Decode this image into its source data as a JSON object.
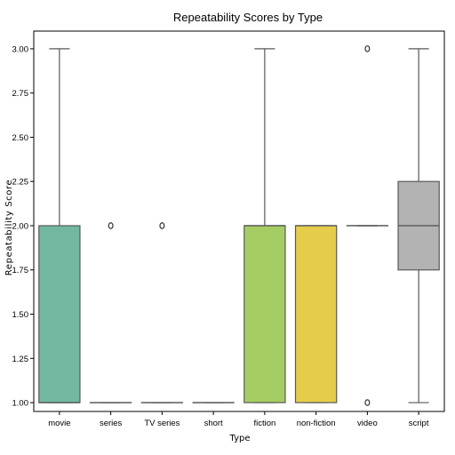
{
  "chart_data": {
    "type": "box",
    "title": "Repeatability Scores by Type",
    "xlabel": "Type",
    "ylabel": "Repeatability Score",
    "ylim": [
      0.95,
      3.1
    ],
    "yticks": [
      "1.00",
      "1.25",
      "1.50",
      "1.75",
      "2.00",
      "2.25",
      "2.50",
      "2.75",
      "3.00"
    ],
    "grid": false,
    "categories": [
      "movie",
      "series",
      "TV series",
      "short",
      "fiction",
      "non-fiction",
      "video",
      "script"
    ],
    "boxes": [
      {
        "category": "movie",
        "whisker_low": 1.0,
        "q1": 1.0,
        "median": 1.0,
        "q3": 2.0,
        "whisker_high": 3.0,
        "outliers": [],
        "color": "#72b8a1"
      },
      {
        "category": "series",
        "whisker_low": 1.0,
        "q1": 1.0,
        "median": 1.0,
        "q3": 1.0,
        "whisker_high": 1.0,
        "outliers": [
          2.0
        ],
        "color": "#ee9469"
      },
      {
        "category": "TV series",
        "whisker_low": 1.0,
        "q1": 1.0,
        "median": 1.0,
        "q3": 1.0,
        "whisker_high": 1.0,
        "outliers": [
          2.0
        ],
        "color": "#98a6cd"
      },
      {
        "category": "short",
        "whisker_low": 1.0,
        "q1": 1.0,
        "median": 1.0,
        "q3": 1.0,
        "whisker_high": 1.0,
        "outliers": [],
        "color": "#de8fc2"
      },
      {
        "category": "fiction",
        "whisker_low": 1.0,
        "q1": 1.0,
        "median": 2.0,
        "q3": 2.0,
        "whisker_high": 3.0,
        "outliers": [],
        "color": "#a5cd63"
      },
      {
        "category": "non-fiction",
        "whisker_low": 1.0,
        "q1": 1.0,
        "median": 2.0,
        "q3": 2.0,
        "whisker_high": 2.0,
        "outliers": [],
        "color": "#e5cc4a"
      },
      {
        "category": "video",
        "whisker_low": 2.0,
        "q1": 2.0,
        "median": 2.0,
        "q3": 2.0,
        "whisker_high": 2.0,
        "outliers": [
          1.0,
          3.0
        ],
        "color": "#e0c395"
      },
      {
        "category": "script",
        "whisker_low": 1.0,
        "q1": 1.75,
        "median": 2.0,
        "q3": 2.25,
        "whisker_high": 3.0,
        "outliers": [],
        "color": "#b3b3b3"
      }
    ]
  }
}
